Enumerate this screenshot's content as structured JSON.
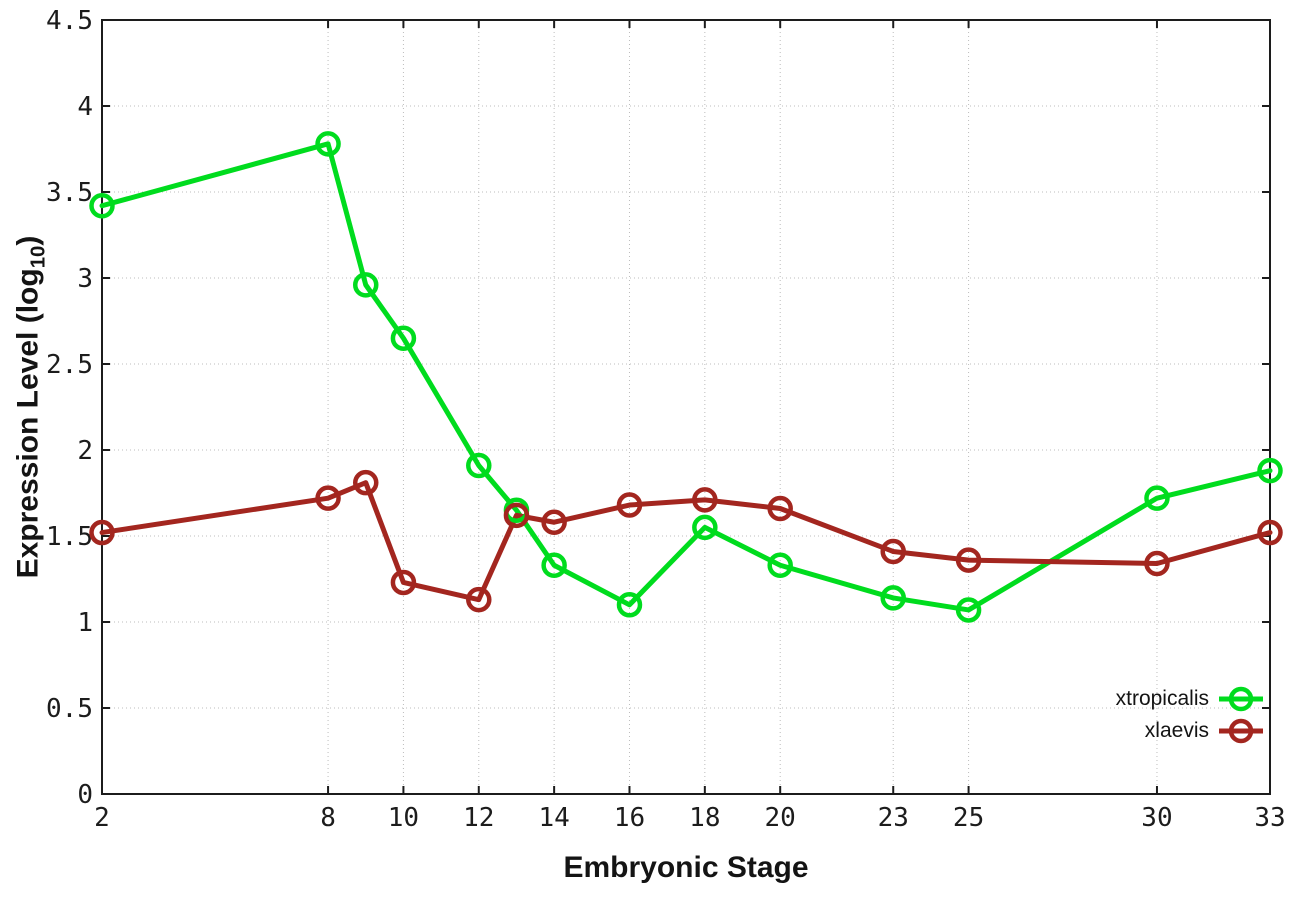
{
  "chart_data": {
    "type": "line",
    "title": "",
    "xlabel": "Embryonic Stage",
    "ylabel": "Expression Level (log10)",
    "ylabel_parts": {
      "prefix": "Expression Level (log",
      "sub": "10",
      "suffix": ")"
    },
    "xlim": [
      2,
      33
    ],
    "ylim": [
      0,
      4.5
    ],
    "x_ticks": [
      2,
      8,
      10,
      12,
      14,
      16,
      18,
      20,
      23,
      25,
      30,
      33
    ],
    "x_tick_labels": [
      "2",
      "8",
      "10",
      "12",
      "14",
      "16",
      "18",
      "20",
      "23",
      "25",
      "30",
      "33"
    ],
    "y_ticks": [
      0,
      0.5,
      1,
      1.5,
      2,
      2.5,
      3,
      3.5,
      4,
      4.5
    ],
    "y_tick_labels": [
      "0",
      "0.5",
      "1",
      "1.5",
      "2",
      "2.5",
      "3",
      "3.5",
      "4",
      "4.5"
    ],
    "grid": true,
    "legend_position": "inside-bottom-right",
    "x": [
      2,
      8,
      9,
      10,
      12,
      13,
      14,
      16,
      18,
      20,
      23,
      25,
      30,
      33
    ],
    "series": [
      {
        "name": "xtropicalis",
        "color": "#00dc1e",
        "marker": "open-circle",
        "values": [
          3.42,
          3.78,
          2.96,
          2.65,
          1.91,
          1.65,
          1.33,
          1.1,
          1.55,
          1.33,
          1.14,
          1.07,
          1.72,
          1.88
        ]
      },
      {
        "name": "xlaevis",
        "color": "#a3261f",
        "marker": "open-circle",
        "values": [
          1.52,
          1.72,
          1.81,
          1.23,
          1.13,
          1.62,
          1.58,
          1.68,
          1.71,
          1.66,
          1.41,
          1.36,
          1.34,
          1.52
        ]
      }
    ],
    "axis_color": "#1c1c1c",
    "grid_color": "#bcbcbc",
    "background_color": "#ffffff"
  }
}
